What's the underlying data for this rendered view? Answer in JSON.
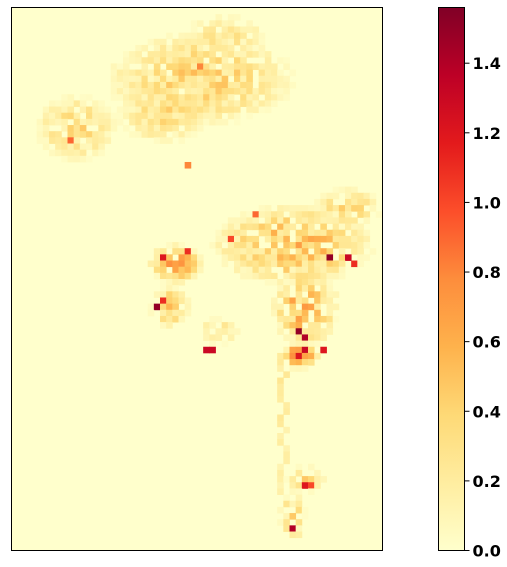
{
  "colormap": {
    "name": "YlOrRd",
    "stops": [
      "#ffffcc",
      "#ffeda0",
      "#fed976",
      "#feb24c",
      "#fd8d3c",
      "#fc4e2a",
      "#e31a1c",
      "#bd0026",
      "#800026"
    ]
  },
  "colorbar": {
    "min": 0.0,
    "max": 1.56,
    "ticks": [
      {
        "value": 0.0,
        "label": "0.0"
      },
      {
        "value": 0.2,
        "label": "0.2"
      },
      {
        "value": 0.4,
        "label": "0.4"
      },
      {
        "value": 0.6,
        "label": "0.6"
      },
      {
        "value": 0.8,
        "label": "0.8"
      },
      {
        "value": 1.0,
        "label": "1.0"
      },
      {
        "value": 1.2,
        "label": "1.2"
      },
      {
        "value": 1.4,
        "label": "1.4"
      }
    ]
  },
  "chart_data": {
    "type": "heatmap",
    "title": "",
    "xlabel": "",
    "ylabel": "",
    "grid": false,
    "legend": "colorbar-right",
    "value_range": [
      0.0,
      1.56
    ],
    "grid_size": [
      60,
      88
    ],
    "clusters": [
      {
        "cx": 30,
        "cy": 11,
        "rx": 14,
        "ry": 7,
        "value": 0.35
      },
      {
        "cx": 10,
        "cy": 19,
        "rx": 6,
        "ry": 5,
        "value": 0.3
      },
      {
        "cx": 34,
        "cy": 4,
        "rx": 6,
        "ry": 3,
        "value": 0.25
      },
      {
        "cx": 24,
        "cy": 16,
        "rx": 7,
        "ry": 5,
        "value": 0.3
      },
      {
        "cx": 45,
        "cy": 38,
        "rx": 12,
        "ry": 6,
        "value": 0.45
      },
      {
        "cx": 47,
        "cy": 48,
        "rx": 5,
        "ry": 6,
        "value": 0.5
      },
      {
        "cx": 54,
        "cy": 32,
        "rx": 5,
        "ry": 3,
        "value": 0.3
      },
      {
        "cx": 26,
        "cy": 41,
        "rx": 4,
        "ry": 3,
        "value": 0.5
      },
      {
        "cx": 25,
        "cy": 48,
        "rx": 3,
        "ry": 3,
        "value": 0.4
      },
      {
        "cx": 33,
        "cy": 52,
        "rx": 3,
        "ry": 2,
        "value": 0.25
      },
      {
        "cx": 46,
        "cy": 56,
        "rx": 3,
        "ry": 2,
        "value": 0.6
      },
      {
        "cx": 45,
        "cy": 82,
        "rx": 2,
        "ry": 4,
        "value": 0.3
      },
      {
        "cx": 47,
        "cy": 76,
        "rx": 3,
        "ry": 2,
        "value": 0.3
      }
    ],
    "corridors": [
      {
        "x": 43,
        "y0": 57,
        "y1": 78,
        "value": 0.2
      }
    ],
    "hotspots": [
      {
        "col": 46,
        "row": 52,
        "value": 1.5
      },
      {
        "col": 47,
        "row": 53,
        "value": 1.4
      },
      {
        "col": 47,
        "row": 55,
        "value": 1.3
      },
      {
        "col": 46,
        "row": 56,
        "value": 1.2
      },
      {
        "col": 50,
        "row": 55,
        "value": 1.2
      },
      {
        "col": 51,
        "row": 40,
        "value": 1.5
      },
      {
        "col": 54,
        "row": 40,
        "value": 1.3
      },
      {
        "col": 55,
        "row": 41,
        "value": 1.1
      },
      {
        "col": 24,
        "row": 40,
        "value": 1.2
      },
      {
        "col": 23,
        "row": 48,
        "value": 1.5
      },
      {
        "col": 24,
        "row": 47,
        "value": 1.1
      },
      {
        "col": 31,
        "row": 55,
        "value": 1.3
      },
      {
        "col": 32,
        "row": 55,
        "value": 1.3
      },
      {
        "col": 45,
        "row": 84,
        "value": 1.4
      },
      {
        "col": 47,
        "row": 77,
        "value": 1.2
      },
      {
        "col": 48,
        "row": 77,
        "value": 1.0
      },
      {
        "col": 35,
        "row": 37,
        "value": 1.0
      },
      {
        "col": 39,
        "row": 33,
        "value": 0.9
      },
      {
        "col": 28,
        "row": 39,
        "value": 1.1
      },
      {
        "col": 9,
        "row": 21,
        "value": 0.9
      },
      {
        "col": 28,
        "row": 25,
        "value": 0.8
      },
      {
        "col": 30,
        "row": 9,
        "value": 0.8
      }
    ]
  }
}
